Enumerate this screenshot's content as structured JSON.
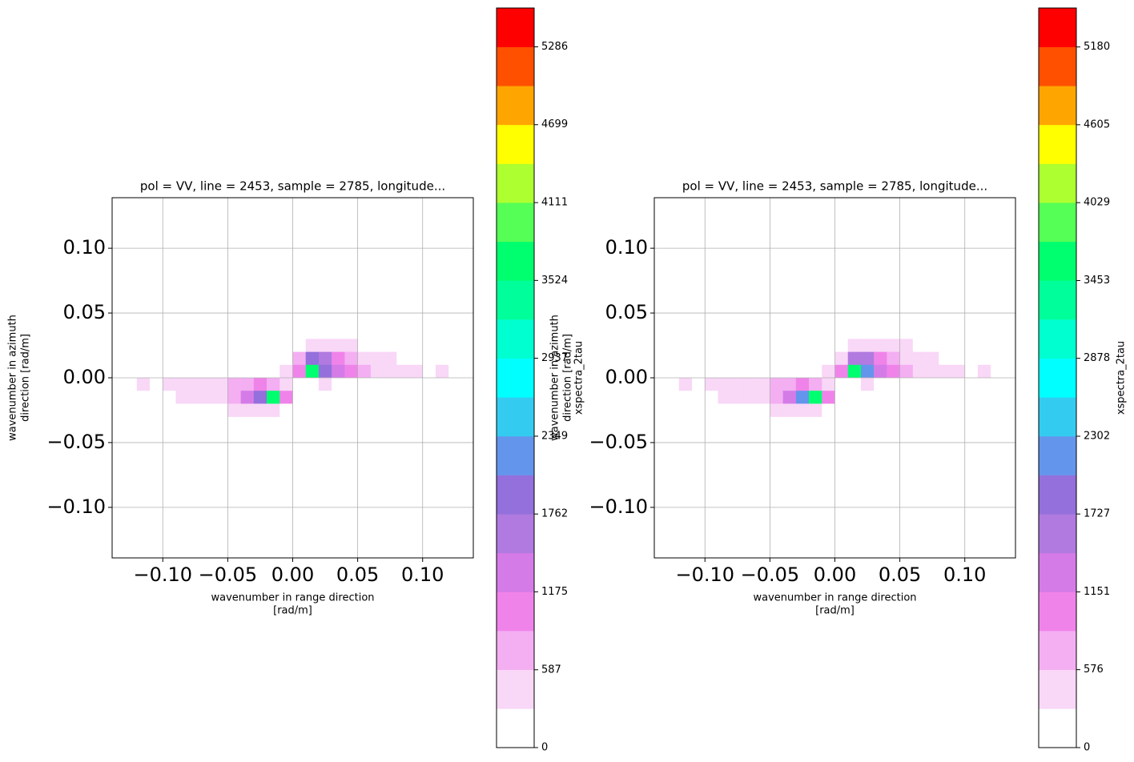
{
  "chart_data": [
    {
      "type": "heatmap",
      "title": "pol = VV, line = 2453, sample = 2785, longitude...",
      "xlabel": [
        "wavenumber in range direction",
        "[rad/m]"
      ],
      "ylabel": [
        "wavenumber in azimuth",
        "direction [rad/m]"
      ],
      "x": [
        -0.125,
        -0.115,
        -0.105,
        -0.095,
        -0.085,
        -0.075,
        -0.065,
        -0.055,
        -0.045,
        -0.035,
        -0.025,
        -0.015,
        -0.005,
        0.005,
        0.015,
        0.025,
        0.035,
        0.045,
        0.055,
        0.065,
        0.075,
        0.085,
        0.095,
        0.105,
        0.115,
        0.125
      ],
      "y": [
        0.025,
        0.015,
        0.005,
        -0.005,
        -0.015,
        -0.025
      ],
      "z": [
        [
          0,
          0,
          0,
          0,
          0,
          0,
          0,
          0,
          0,
          0,
          0,
          0,
          0,
          0,
          300,
          400,
          300,
          300,
          0,
          0,
          0,
          0,
          0,
          0,
          0,
          0
        ],
        [
          0,
          0,
          0,
          0,
          0,
          0,
          0,
          0,
          0,
          0,
          0,
          0,
          0,
          600,
          1800,
          1500,
          1000,
          700,
          500,
          400,
          300,
          0,
          0,
          0,
          0,
          0
        ],
        [
          0,
          0,
          0,
          0,
          0,
          0,
          0,
          0,
          0,
          0,
          0,
          0,
          300,
          900,
          3600,
          2000,
          1300,
          900,
          700,
          500,
          400,
          300,
          300,
          0,
          300,
          0
        ],
        [
          0,
          300,
          0,
          300,
          300,
          300,
          400,
          500,
          600,
          700,
          900,
          600,
          300,
          0,
          0,
          300,
          0,
          0,
          0,
          0,
          0,
          0,
          0,
          0,
          0,
          0
        ],
        [
          0,
          0,
          0,
          0,
          300,
          300,
          400,
          500,
          700,
          1200,
          2000,
          3600,
          900,
          0,
          0,
          0,
          0,
          0,
          0,
          0,
          0,
          0,
          0,
          0,
          0,
          0
        ],
        [
          0,
          0,
          0,
          0,
          0,
          0,
          0,
          0,
          300,
          300,
          400,
          300,
          0,
          0,
          0,
          0,
          0,
          0,
          0,
          0,
          0,
          0,
          0,
          0,
          0,
          0
        ]
      ],
      "xlim": [
        -0.139,
        0.139
      ],
      "ylim": [
        -0.139,
        0.139
      ],
      "xticks": [
        {
          "value": -0.1,
          "label": "−0.10"
        },
        {
          "value": -0.05,
          "label": "−0.05"
        },
        {
          "value": 0,
          "label": "0.00"
        },
        {
          "value": 0.05,
          "label": "0.05"
        },
        {
          "value": 0.1,
          "label": "0.10"
        }
      ],
      "yticks": [
        {
          "value": -0.1,
          "label": "−0.10"
        },
        {
          "value": -0.05,
          "label": "−0.05"
        },
        {
          "value": 0,
          "label": "0.00"
        },
        {
          "value": 0.05,
          "label": "0.05"
        },
        {
          "value": 0.1,
          "label": "0.10"
        }
      ],
      "grid": true,
      "colorbar": {
        "label": "xspectra_2tau",
        "lim": [
          0,
          5579
        ],
        "ticks": [
          0,
          587,
          1175,
          1762,
          2349,
          2937,
          3524,
          4111,
          4699,
          5286
        ],
        "colors": [
          "#ffffff",
          "#f9d7f7",
          "#f4aef2",
          "#f083ea",
          "#d57be8",
          "#b07ae0",
          "#9370db",
          "#6495ed",
          "#33ccf0",
          "#00ffff",
          "#00ffd0",
          "#00ff9a",
          "#00ff6e",
          "#55ff55",
          "#adff2f",
          "#ffff00",
          "#ffa500",
          "#ff5000",
          "#ff0000"
        ]
      }
    },
    {
      "type": "heatmap",
      "title": "pol = VV, line = 2453, sample = 2785, longitude...",
      "xlabel": [
        "wavenumber in range direction",
        "[rad/m]"
      ],
      "ylabel": [
        "wavenumber in azimuth",
        "direction [rad/m]"
      ],
      "x": [
        -0.125,
        -0.115,
        -0.105,
        -0.095,
        -0.085,
        -0.075,
        -0.065,
        -0.055,
        -0.045,
        -0.035,
        -0.025,
        -0.015,
        -0.005,
        0.005,
        0.015,
        0.025,
        0.035,
        0.045,
        0.055,
        0.065,
        0.075,
        0.085,
        0.095,
        0.105,
        0.115,
        0.125
      ],
      "y": [
        0.025,
        0.015,
        0.005,
        -0.005,
        -0.015,
        -0.025
      ],
      "z": [
        [
          0,
          0,
          0,
          0,
          0,
          0,
          0,
          0,
          0,
          0,
          0,
          0,
          0,
          0,
          300,
          400,
          300,
          300,
          300,
          0,
          0,
          0,
          0,
          0,
          0,
          0
        ],
        [
          0,
          0,
          0,
          0,
          0,
          0,
          0,
          0,
          0,
          0,
          0,
          0,
          0,
          500,
          1700,
          1600,
          1000,
          700,
          500,
          400,
          300,
          0,
          0,
          0,
          0,
          0
        ],
        [
          0,
          0,
          0,
          0,
          0,
          0,
          0,
          0,
          0,
          0,
          0,
          0,
          300,
          900,
          3500,
          2100,
          1300,
          900,
          700,
          500,
          400,
          300,
          300,
          0,
          300,
          0
        ],
        [
          0,
          300,
          0,
          300,
          300,
          300,
          400,
          500,
          600,
          700,
          900,
          600,
          300,
          0,
          0,
          300,
          0,
          0,
          0,
          0,
          0,
          0,
          0,
          0,
          0,
          0
        ],
        [
          0,
          0,
          0,
          0,
          300,
          300,
          400,
          500,
          700,
          1300,
          2100,
          3500,
          900,
          0,
          0,
          0,
          0,
          0,
          0,
          0,
          0,
          0,
          0,
          0,
          0,
          0
        ],
        [
          0,
          0,
          0,
          0,
          0,
          0,
          0,
          0,
          300,
          300,
          400,
          300,
          0,
          0,
          0,
          0,
          0,
          0,
          0,
          0,
          0,
          0,
          0,
          0,
          0,
          0
        ]
      ],
      "xlim": [
        -0.139,
        0.139
      ],
      "ylim": [
        -0.139,
        0.139
      ],
      "xticks": [
        {
          "value": -0.1,
          "label": "−0.10"
        },
        {
          "value": -0.05,
          "label": "−0.05"
        },
        {
          "value": 0,
          "label": "0.00"
        },
        {
          "value": 0.05,
          "label": "0.05"
        },
        {
          "value": 0.1,
          "label": "0.10"
        }
      ],
      "yticks": [
        {
          "value": -0.1,
          "label": "−0.10"
        },
        {
          "value": -0.05,
          "label": "−0.05"
        },
        {
          "value": 0,
          "label": "0.00"
        },
        {
          "value": 0.05,
          "label": "0.05"
        },
        {
          "value": 0.1,
          "label": "0.10"
        }
      ],
      "grid": true,
      "colorbar": {
        "label": "xspectra_2tau",
        "lim": [
          0,
          5468
        ],
        "ticks": [
          0,
          576,
          1151,
          1727,
          2302,
          2878,
          3453,
          4029,
          4605,
          5180
        ],
        "colors": [
          "#ffffff",
          "#f9d7f7",
          "#f4aef2",
          "#f083ea",
          "#d57be8",
          "#b07ae0",
          "#9370db",
          "#6495ed",
          "#33ccf0",
          "#00ffff",
          "#00ffd0",
          "#00ff9a",
          "#00ff6e",
          "#55ff55",
          "#adff2f",
          "#ffff00",
          "#ffa500",
          "#ff5000",
          "#ff0000"
        ]
      }
    }
  ]
}
